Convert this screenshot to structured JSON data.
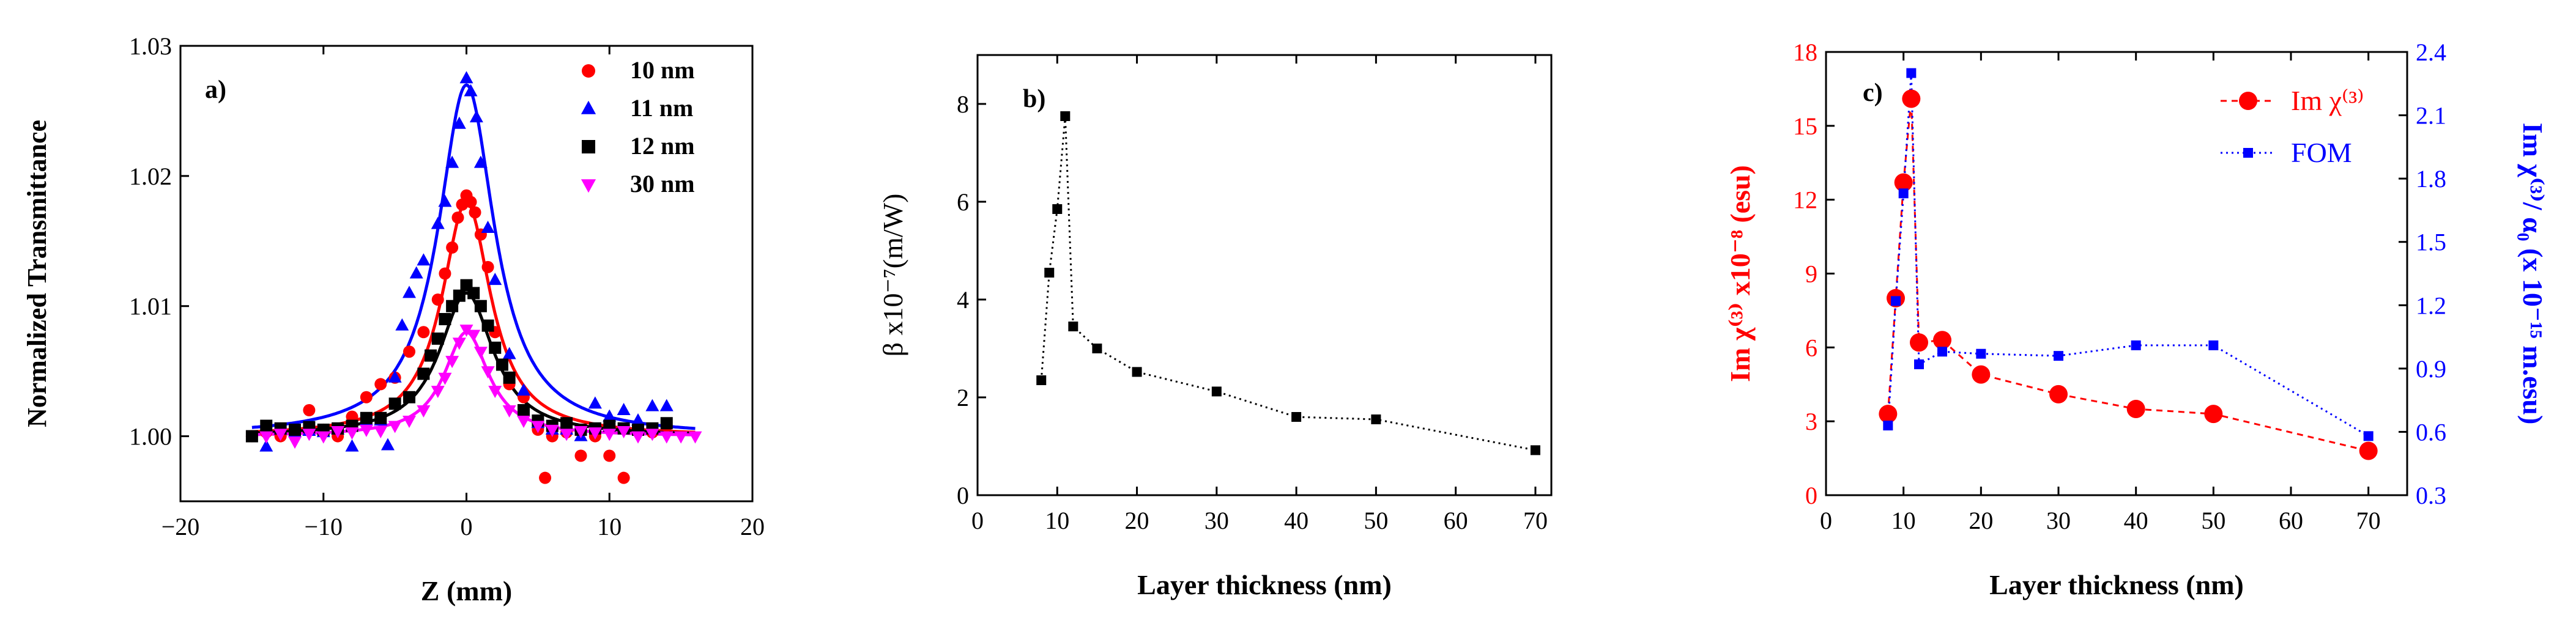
{
  "chart_data": [
    {
      "type": "scatter",
      "panel_label": "a)",
      "xlabel": "Z (mm)",
      "ylabel": "Normalized Transmittance",
      "xlim": [
        -20,
        20
      ],
      "ylim": [
        0.995,
        1.03
      ],
      "xticks": [
        -20,
        -10,
        0,
        10,
        20
      ],
      "yticks": [
        1.0,
        1.01,
        1.02,
        1.03
      ],
      "ytick_labels": [
        "1.00",
        "1.01",
        "1.02",
        "1.03"
      ],
      "legend_position": "top-right",
      "series": [
        {
          "name": "10 nm",
          "color": "#ff0000",
          "marker": "circle",
          "fit_peak": 1.018,
          "fit_width": 2.1,
          "fit_base": 1.0,
          "points": [
            [
              -15,
              1.0
            ],
            [
              -14,
              1.0003
            ],
            [
              -13,
              1.0
            ],
            [
              -12,
              1.0004
            ],
            [
              -11,
              1.002
            ],
            [
              -10,
              1.0005
            ],
            [
              -9,
              1.0
            ],
            [
              -8,
              1.0015
            ],
            [
              -7,
              1.003
            ],
            [
              -6,
              1.004
            ],
            [
              -5,
              1.0045
            ],
            [
              -4,
              1.0065
            ],
            [
              -3,
              1.008
            ],
            [
              -2,
              1.0105
            ],
            [
              -1.5,
              1.0125
            ],
            [
              -1,
              1.0145
            ],
            [
              -0.6,
              1.0168
            ],
            [
              -0.3,
              1.0178
            ],
            [
              0,
              1.0185
            ],
            [
              0.3,
              1.018
            ],
            [
              0.6,
              1.0172
            ],
            [
              1,
              1.0155
            ],
            [
              1.5,
              1.013
            ],
            [
              2,
              1.008
            ],
            [
              3,
              1.004
            ],
            [
              4,
              1.003
            ],
            [
              5,
              1.0005
            ],
            [
              5.5,
              0.9968
            ],
            [
              6,
              1.0
            ],
            [
              7,
              1.0003
            ],
            [
              8,
              0.9985
            ],
            [
              9,
              1.0
            ],
            [
              10,
              0.9985
            ],
            [
              11,
              0.9968
            ],
            [
              12,
              1.0005
            ],
            [
              13,
              1.0003
            ],
            [
              14,
              1.0008
            ]
          ]
        },
        {
          "name": "11 nm",
          "color": "#0000ff",
          "marker": "triangle",
          "fit_peak": 1.027,
          "fit_width": 2.4,
          "fit_base": 1.0,
          "points": [
            [
              -14,
              0.9992
            ],
            [
              -13,
              1.0005
            ],
            [
              -12,
              1.0003
            ],
            [
              -11,
              1.0004
            ],
            [
              -10,
              1.0003
            ],
            [
              -9,
              1.0005
            ],
            [
              -8,
              0.9992
            ],
            [
              -7,
              1.0012
            ],
            [
              -6,
              1.0012
            ],
            [
              -5.5,
              0.9993
            ],
            [
              -5,
              1.0045
            ],
            [
              -4.5,
              1.0085
            ],
            [
              -4,
              1.011
            ],
            [
              -3.5,
              1.0125
            ],
            [
              -3,
              1.0135
            ],
            [
              -2,
              1.0163
            ],
            [
              -1.5,
              1.018
            ],
            [
              -1,
              1.021
            ],
            [
              -0.5,
              1.024
            ],
            [
              0,
              1.0275
            ],
            [
              0.3,
              1.0265
            ],
            [
              0.7,
              1.0245
            ],
            [
              1,
              1.021
            ],
            [
              1.5,
              1.016
            ],
            [
              2,
              1.012
            ],
            [
              3,
              1.0063
            ],
            [
              4,
              1.0035
            ],
            [
              5,
              1.001
            ],
            [
              6,
              1.0005
            ],
            [
              7,
              1.0005
            ],
            [
              8,
              1.0
            ],
            [
              9,
              1.0025
            ],
            [
              10,
              1.0015
            ],
            [
              11,
              1.002
            ],
            [
              12,
              1.0012
            ],
            [
              13,
              1.0023
            ],
            [
              14,
              1.0023
            ]
          ]
        },
        {
          "name": "12 nm",
          "color": "#000000",
          "marker": "square",
          "fit_peak": 1.011,
          "fit_width": 2.3,
          "fit_base": 1.0,
          "points": [
            [
              -15,
              1.0
            ],
            [
              -14,
              1.0008
            ],
            [
              -13,
              1.0006
            ],
            [
              -12,
              1.0005
            ],
            [
              -11,
              1.0007
            ],
            [
              -10,
              1.0005
            ],
            [
              -9,
              1.0006
            ],
            [
              -8,
              1.0008
            ],
            [
              -7,
              1.0014
            ],
            [
              -6,
              1.0014
            ],
            [
              -5,
              1.0025
            ],
            [
              -4,
              1.003
            ],
            [
              -3,
              1.0048
            ],
            [
              -2.5,
              1.0062
            ],
            [
              -2,
              1.0075
            ],
            [
              -1.5,
              1.009
            ],
            [
              -1,
              1.01
            ],
            [
              -0.5,
              1.0108
            ],
            [
              0,
              1.0116
            ],
            [
              0.5,
              1.011
            ],
            [
              1,
              1.01
            ],
            [
              1.5,
              1.0085
            ],
            [
              2,
              1.0068
            ],
            [
              2.5,
              1.0055
            ],
            [
              3,
              1.0045
            ],
            [
              4,
              1.002
            ],
            [
              5,
              1.0012
            ],
            [
              6,
              1.0008
            ],
            [
              7,
              1.001
            ],
            [
              8,
              1.0005
            ],
            [
              9,
              1.0006
            ],
            [
              10,
              1.0008
            ],
            [
              11,
              1.0006
            ],
            [
              12,
              1.0005
            ],
            [
              13,
              1.0006
            ],
            [
              14,
              1.001
            ]
          ]
        },
        {
          "name": "30 nm",
          "color": "#ff00ff",
          "marker": "triangle-down",
          "fit_peak": 1.008,
          "fit_width": 1.9,
          "fit_base": 1.0,
          "points": [
            [
              -14,
              1.0
            ],
            [
              -13,
              1.0002
            ],
            [
              -12,
              0.9996
            ],
            [
              -11,
              1.0002
            ],
            [
              -10,
              1.0
            ],
            [
              -9,
              1.0004
            ],
            [
              -8,
              1.0003
            ],
            [
              -7,
              1.0005
            ],
            [
              -6,
              1.0004
            ],
            [
              -5,
              1.0008
            ],
            [
              -4,
              1.0012
            ],
            [
              -3,
              1.002
            ],
            [
              -2,
              1.0035
            ],
            [
              -1.5,
              1.0045
            ],
            [
              -1,
              1.0058
            ],
            [
              -0.5,
              1.0072
            ],
            [
              0,
              1.0082
            ],
            [
              0.5,
              1.0078
            ],
            [
              1,
              1.0065
            ],
            [
              1.5,
              1.005
            ],
            [
              2,
              1.0035
            ],
            [
              3,
              1.002
            ],
            [
              4,
              1.0012
            ],
            [
              5,
              1.0008
            ],
            [
              6,
              1.0005
            ],
            [
              7,
              1.0002
            ],
            [
              8,
              1.0004
            ],
            [
              9,
              1.0003
            ],
            [
              10,
              1.0002
            ],
            [
              11,
              1.0004
            ],
            [
              12,
              1.0
            ],
            [
              13,
              1.0002
            ],
            [
              14,
              1.0
            ],
            [
              15,
              1.0
            ],
            [
              16,
              1.0
            ]
          ]
        }
      ]
    },
    {
      "type": "line",
      "panel_label": "b)",
      "xlabel": "Layer thickness (nm)",
      "ylabel": "β x10⁻⁷(m/W)",
      "xlim": [
        0,
        72
      ],
      "ylim": [
        0,
        9
      ],
      "xticks": [
        0,
        10,
        20,
        30,
        40,
        50,
        60,
        70
      ],
      "yticks": [
        0,
        2,
        4,
        6,
        8
      ],
      "series": [
        {
          "name": "β",
          "color": "#000000",
          "marker": "square",
          "line": "dotted",
          "x": [
            8,
            9,
            10,
            11,
            12,
            15,
            20,
            30,
            40,
            50,
            70
          ],
          "y": [
            2.35,
            4.55,
            5.85,
            7.75,
            3.45,
            3.0,
            2.52,
            2.12,
            1.6,
            1.55,
            0.92
          ]
        }
      ]
    },
    {
      "type": "line",
      "panel_label": "c)",
      "xlabel": "Layer thickness (nm)",
      "ylabel_left": "Im χ⁽³⁾ x10⁻⁸ (esu)",
      "ylabel_right": "Im χ⁽³⁾/ α₀ (x 10⁻¹⁵ m.esu)",
      "xlim": [
        0,
        75
      ],
      "ylim_left": [
        0,
        18
      ],
      "ylim_right": [
        0.3,
        2.4
      ],
      "xticks": [
        0,
        10,
        20,
        30,
        40,
        50,
        60,
        70
      ],
      "yticks_left": [
        0,
        3,
        6,
        9,
        12,
        15,
        18
      ],
      "yticks_right": [
        "0.3",
        "0.6",
        "0.9",
        "1.2",
        "1.5",
        "1.8",
        "2.1",
        "2.4"
      ],
      "legend_position": "top-right",
      "series": [
        {
          "name": "Im χ⁽³⁾",
          "axis": "left",
          "color": "#ff0000",
          "marker": "circle",
          "line": "dashed",
          "x": [
            8,
            9,
            10,
            11,
            12,
            15,
            20,
            30,
            40,
            50,
            70
          ],
          "y": [
            3.3,
            8.0,
            12.7,
            16.1,
            6.2,
            6.3,
            4.9,
            4.1,
            3.5,
            3.3,
            1.8
          ]
        },
        {
          "name": "FOM",
          "axis": "right",
          "color": "#0000ff",
          "marker": "square",
          "line": "dotted",
          "x": [
            8,
            9,
            10,
            11,
            12,
            15,
            20,
            30,
            40,
            50,
            70
          ],
          "y": [
            0.63,
            1.22,
            1.73,
            2.3,
            0.92,
            0.98,
            0.97,
            0.96,
            1.01,
            1.01,
            0.58
          ]
        }
      ]
    }
  ]
}
